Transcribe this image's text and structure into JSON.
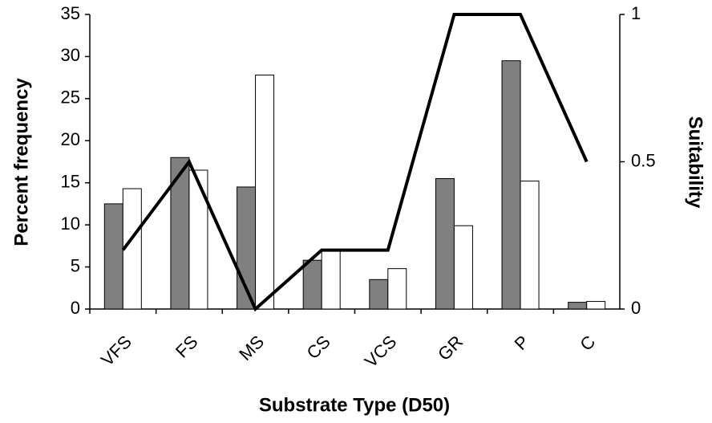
{
  "chart_data": {
    "type": "bar",
    "xlabel": "Substrate Type (D50)",
    "ylabel": "Percent frequency",
    "y2label": "Suitability",
    "categories": [
      "VFS",
      "FS",
      "MS",
      "CS",
      "VCS",
      "GR",
      "P",
      "C"
    ],
    "series": [
      {
        "color": "#808080",
        "values": [
          12.5,
          18,
          14.5,
          5.8,
          3.5,
          15.5,
          29.5,
          0.8
        ]
      },
      {
        "color": "#ffffff",
        "values": [
          14.3,
          16.5,
          27.8,
          7,
          4.8,
          9.9,
          15.2,
          0.9
        ]
      },
      {
        "color": "#000000",
        "type": "line",
        "axis": "y2",
        "values": [
          0.2,
          0.5,
          0,
          0.2,
          0.2,
          1,
          1,
          0.5
        ]
      }
    ],
    "ylim": [
      0,
      35
    ],
    "yticks": [
      0,
      5,
      10,
      15,
      20,
      25,
      30,
      35
    ],
    "y2lim": [
      0,
      1
    ],
    "y2ticks": [
      0,
      0.5,
      1
    ],
    "grid": false
  }
}
